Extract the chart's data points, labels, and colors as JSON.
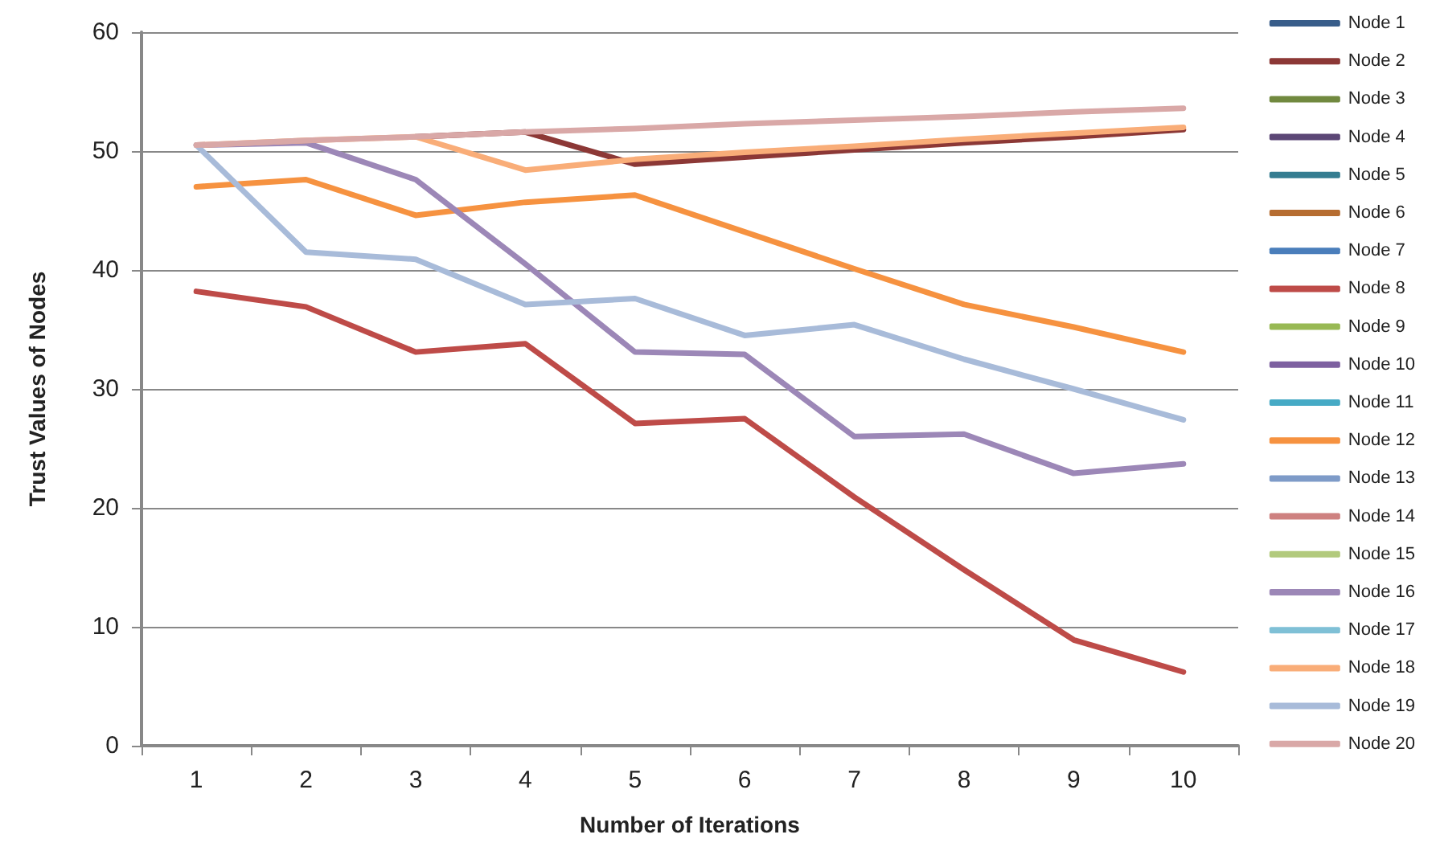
{
  "chart_data": {
    "type": "line",
    "xlabel": "Number of Iterations",
    "ylabel": "Trust Values of Nodes",
    "categories": [
      "1",
      "2",
      "3",
      "4",
      "5",
      "6",
      "7",
      "8",
      "9",
      "10"
    ],
    "ylim": [
      0,
      60
    ],
    "yticks": [
      0,
      10,
      20,
      30,
      40,
      50,
      60
    ],
    "grid": "y",
    "legend": "right",
    "marker": "none",
    "line_style": "solid",
    "series": [
      {
        "name": "Node 1",
        "color": "#385d8a",
        "values": [
          null,
          null,
          null,
          null,
          null,
          null,
          null,
          null,
          null,
          null
        ]
      },
      {
        "name": "Node 2",
        "color": "#8c3836",
        "values": [
          null,
          null,
          51.2,
          51.6,
          48.9,
          49.5,
          50.1,
          50.7,
          51.2,
          51.8
        ]
      },
      {
        "name": "Node 3",
        "color": "#71893f",
        "values": [
          null,
          null,
          null,
          null,
          null,
          null,
          null,
          null,
          null,
          null
        ]
      },
      {
        "name": "Node 4",
        "color": "#5c4776",
        "values": [
          null,
          null,
          null,
          null,
          null,
          null,
          null,
          null,
          null,
          null
        ]
      },
      {
        "name": "Node 5",
        "color": "#357d91",
        "values": [
          null,
          null,
          null,
          null,
          null,
          null,
          null,
          null,
          null,
          null
        ]
      },
      {
        "name": "Node 6",
        "color": "#b66d31",
        "values": [
          null,
          null,
          null,
          null,
          null,
          null,
          null,
          null,
          null,
          null
        ]
      },
      {
        "name": "Node 7",
        "color": "#4a7ebb",
        "values": [
          null,
          null,
          null,
          null,
          null,
          null,
          null,
          null,
          null,
          null
        ]
      },
      {
        "name": "Node 8",
        "color": "#be4b48",
        "values": [
          38.2,
          36.9,
          33.1,
          33.8,
          27.1,
          27.5,
          20.9,
          14.8,
          8.9,
          6.2
        ]
      },
      {
        "name": "Node 9",
        "color": "#98b954",
        "values": [
          null,
          null,
          null,
          null,
          null,
          null,
          null,
          null,
          null,
          null
        ]
      },
      {
        "name": "Node 10",
        "color": "#7d60a0",
        "values": [
          null,
          null,
          null,
          null,
          null,
          null,
          null,
          null,
          null,
          null
        ]
      },
      {
        "name": "Node 11",
        "color": "#46aac5",
        "values": [
          null,
          null,
          null,
          null,
          null,
          null,
          null,
          null,
          null,
          null
        ]
      },
      {
        "name": "Node 12",
        "color": "#f69240",
        "values": [
          47,
          47.6,
          44.6,
          45.7,
          46.3,
          43.2,
          40.1,
          37.1,
          35.2,
          33.1
        ]
      },
      {
        "name": "Node 13",
        "color": "#7e9bc8",
        "values": [
          null,
          null,
          null,
          null,
          null,
          null,
          null,
          null,
          null,
          null
        ]
      },
      {
        "name": "Node 14",
        "color": "#ce8180",
        "values": [
          null,
          null,
          null,
          null,
          null,
          null,
          null,
          null,
          null,
          null
        ]
      },
      {
        "name": "Node 15",
        "color": "#b2ca7d",
        "values": [
          null,
          null,
          null,
          null,
          null,
          null,
          null,
          null,
          null,
          null
        ]
      },
      {
        "name": "Node 16",
        "color": "#9c87b7",
        "values": [
          50.5,
          50.7,
          47.6,
          40.5,
          33.1,
          32.9,
          26,
          26.2,
          22.9,
          23.7
        ]
      },
      {
        "name": "Node 17",
        "color": "#7fc0d6",
        "values": [
          null,
          null,
          null,
          null,
          null,
          null,
          null,
          null,
          null,
          null
        ]
      },
      {
        "name": "Node 18",
        "color": "#f9ad78",
        "values": [
          50.5,
          50.9,
          51.2,
          48.4,
          49.3,
          49.9,
          50.4,
          51,
          51.5,
          52
        ]
      },
      {
        "name": "Node 19",
        "color": "#a8bbd9",
        "values": [
          50.5,
          41.5,
          40.9,
          37.1,
          37.6,
          34.5,
          35.4,
          32.5,
          30,
          27.4
        ]
      },
      {
        "name": "Node 20",
        "color": "#d9a8a7",
        "values": [
          50.5,
          50.9,
          51.2,
          51.6,
          51.9,
          52.3,
          52.6,
          52.9,
          53.3,
          53.6
        ]
      }
    ]
  }
}
